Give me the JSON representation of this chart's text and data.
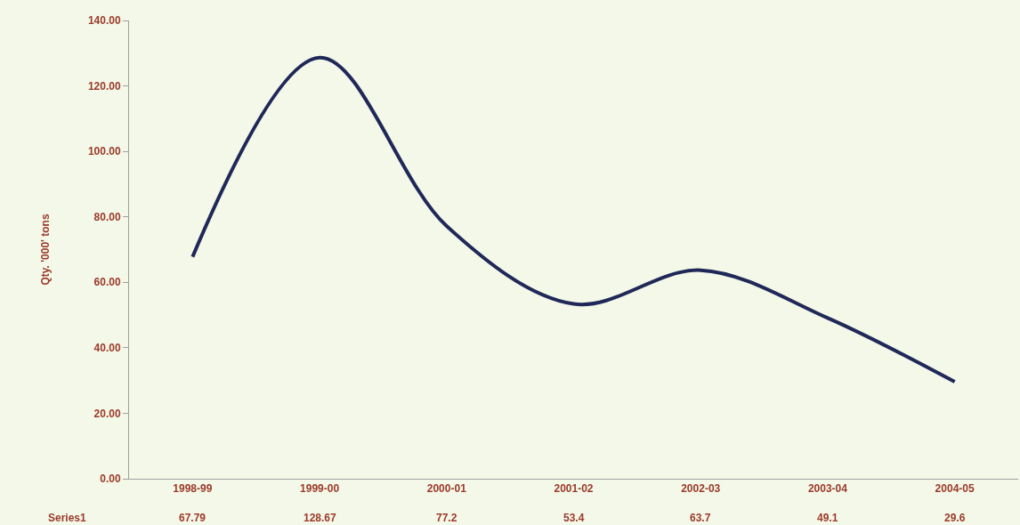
{
  "chart_data": {
    "type": "line",
    "ylabel": "Qty. '000' tons",
    "categories": [
      "1998-99",
      "1999-00",
      "2000-01",
      "2001-02",
      "2002-03",
      "2003-04",
      "2004-05"
    ],
    "series": [
      {
        "name": "Series1",
        "color": "#1f2858",
        "values": [
          67.79,
          128.67,
          77.2,
          53.4,
          63.7,
          49.1,
          29.6
        ]
      }
    ],
    "ylim": [
      0,
      140
    ],
    "yticks": [
      {
        "value": 0,
        "label": "0.00"
      },
      {
        "value": 20,
        "label": "20.00"
      },
      {
        "value": 40,
        "label": "40.00"
      },
      {
        "value": 60,
        "label": "60.00"
      },
      {
        "value": 80,
        "label": "80.00"
      },
      {
        "value": 100,
        "label": "100.00"
      },
      {
        "value": 120,
        "label": "120.00"
      },
      {
        "value": 140,
        "label": "140.00"
      }
    ],
    "grid": false,
    "legend": false,
    "marker": "none",
    "line_style": "solid",
    "data_labels": true
  }
}
